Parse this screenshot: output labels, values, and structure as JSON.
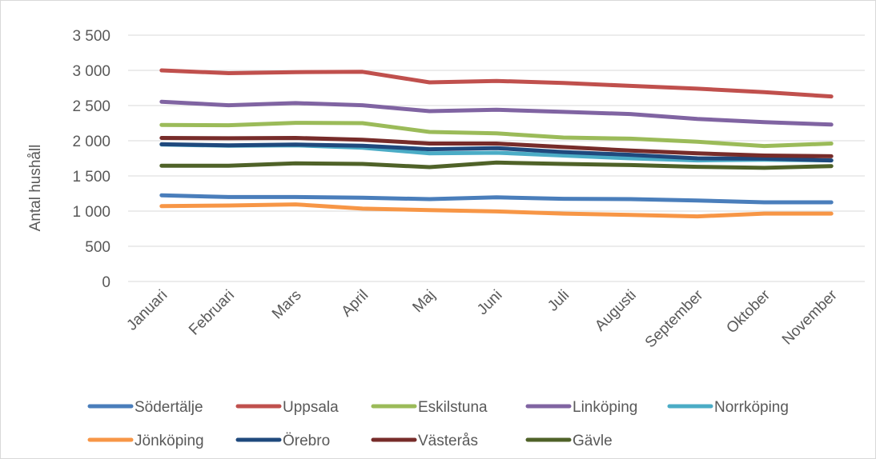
{
  "chart_data": {
    "type": "line",
    "title": "",
    "xlabel": "",
    "ylabel": "Antal hushåll",
    "ylim": [
      0,
      3500
    ],
    "yticks": [
      0,
      500,
      1000,
      1500,
      2000,
      2500,
      3000,
      3500
    ],
    "ytick_labels": [
      "0",
      "500",
      "1 000",
      "1 500",
      "2 000",
      "2 500",
      "3 000",
      "3 500"
    ],
    "grid": "horizontal",
    "legend_position": "bottom",
    "categories": [
      "Januari",
      "Februari",
      "Mars",
      "April",
      "Maj",
      "Juni",
      "Juli",
      "Augusti",
      "September",
      "Oktober",
      "November"
    ],
    "series": [
      {
        "name": "Södertälje",
        "color": "#4a7ebb",
        "values": [
          1225,
          1200,
          1200,
          1190,
          1170,
          1195,
          1175,
          1170,
          1150,
          1125,
          1125
        ]
      },
      {
        "name": "Uppsala",
        "color": "#c0504d",
        "values": [
          3000,
          2960,
          2975,
          2980,
          2830,
          2850,
          2820,
          2780,
          2740,
          2690,
          2630
        ]
      },
      {
        "name": "Eskilstuna",
        "color": "#9bbb59",
        "values": [
          2225,
          2220,
          2255,
          2250,
          2125,
          2105,
          2045,
          2030,
          1985,
          1925,
          1960
        ]
      },
      {
        "name": "Linköping",
        "color": "#8064a2",
        "values": [
          2555,
          2505,
          2535,
          2505,
          2420,
          2440,
          2410,
          2380,
          2310,
          2265,
          2230
        ]
      },
      {
        "name": "Norrköping",
        "color": "#4bacc6",
        "values": [
          1945,
          1930,
          1935,
          1900,
          1820,
          1830,
          1790,
          1750,
          1720,
          1730,
          1720
        ]
      },
      {
        "name": "Jönköping",
        "color": "#f79646",
        "values": [
          1070,
          1080,
          1095,
          1035,
          1015,
          995,
          965,
          945,
          925,
          965,
          965
        ]
      },
      {
        "name": "Örebro",
        "color": "#1f497d",
        "values": [
          1950,
          1935,
          1945,
          1930,
          1880,
          1895,
          1840,
          1800,
          1750,
          1745,
          1720
        ]
      },
      {
        "name": "Västerås",
        "color": "#772c2a",
        "values": [
          2040,
          2035,
          2040,
          2015,
          1960,
          1960,
          1910,
          1860,
          1820,
          1790,
          1780
        ]
      },
      {
        "name": "Gävle",
        "color": "#4f6228",
        "values": [
          1645,
          1645,
          1680,
          1670,
          1625,
          1690,
          1670,
          1655,
          1630,
          1615,
          1640
        ]
      }
    ]
  }
}
